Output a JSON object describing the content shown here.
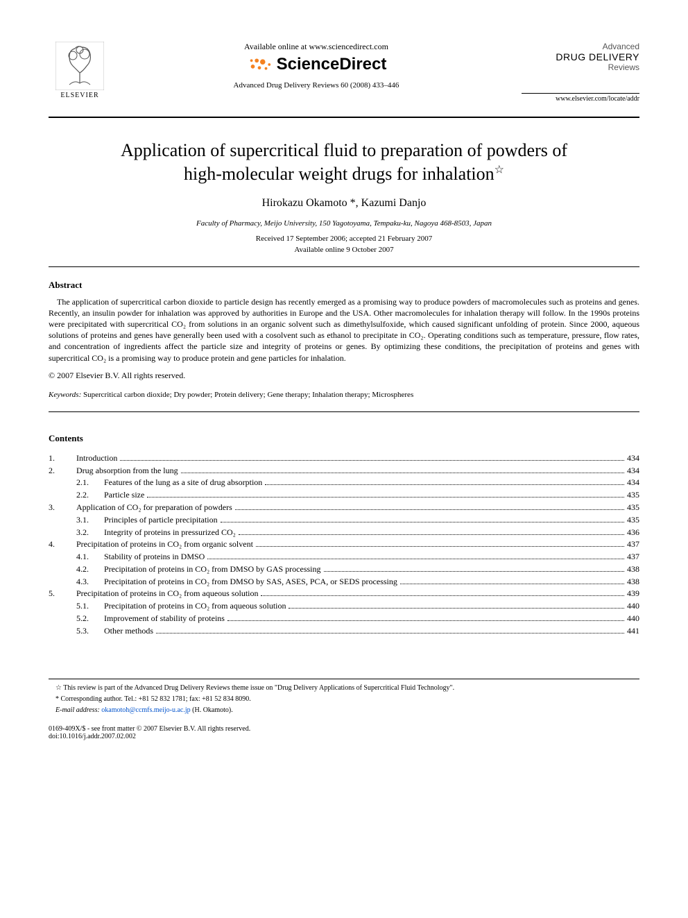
{
  "header": {
    "elsevier_label": "ELSEVIER",
    "available_online": "Available online at www.sciencedirect.com",
    "sd_brand": "ScienceDirect",
    "journal_ref": "Advanced Drug Delivery Reviews 60 (2008) 433–446",
    "journal_name_top": "Advanced",
    "journal_name_mid": "DRUG DELIVERY",
    "journal_name_bot": "Reviews",
    "locate_url": "www.elsevier.com/locate/addr"
  },
  "article": {
    "title_line1": "Application of supercritical fluid to preparation of powders of",
    "title_line2": "high-molecular weight drugs for inhalation",
    "authors": "Hirokazu Okamoto *, Kazumi Danjo",
    "affiliation": "Faculty of Pharmacy, Meijo University, 150 Yagotoyama, Tempaku-ku, Nagoya 468-8503, Japan",
    "received": "Received 17 September 2006; accepted 21 February 2007",
    "online": "Available online 9 October 2007"
  },
  "abstract": {
    "heading": "Abstract",
    "body": "The application of supercritical carbon dioxide to particle design has recently emerged as a promising way to produce powders of macromolecules such as proteins and genes. Recently, an insulin powder for inhalation was approved by authorities in Europe and the USA. Other macromolecules for inhalation therapy will follow. In the 1990s proteins were precipitated with supercritical CO₂ from solutions in an organic solvent such as dimethylsulfoxide, which caused significant unfolding of protein. Since 2000, aqueous solutions of proteins and genes have generally been used with a cosolvent such as ethanol to precipitate in CO₂. Operating conditions such as temperature, pressure, flow rates, and concentration of ingredients affect the particle size and integrity of proteins or genes. By optimizing these conditions, the precipitation of proteins and genes with supercritical CO₂ is a promising way to produce protein and gene particles for inhalation.",
    "copyright": "© 2007 Elsevier B.V. All rights reserved."
  },
  "keywords": {
    "label": "Keywords:",
    "text": " Supercritical carbon dioxide; Dry powder; Protein delivery; Gene therapy; Inhalation therapy; Microspheres"
  },
  "contents": {
    "heading": "Contents",
    "items": [
      {
        "num": "1.",
        "sub": "",
        "title": "Introduction",
        "page": "434",
        "level": 1
      },
      {
        "num": "2.",
        "sub": "",
        "title": "Drug absorption from the lung",
        "page": "434",
        "level": 1
      },
      {
        "num": "",
        "sub": "2.1.",
        "title": "Features of the lung as a site of drug absorption",
        "page": "434",
        "level": 2
      },
      {
        "num": "",
        "sub": "2.2.",
        "title": "Particle size",
        "page": "435",
        "level": 2
      },
      {
        "num": "3.",
        "sub": "",
        "title": "Application of CO₂ for preparation of powders",
        "page": "435",
        "level": 1
      },
      {
        "num": "",
        "sub": "3.1.",
        "title": "Principles of particle precipitation",
        "page": "435",
        "level": 2
      },
      {
        "num": "",
        "sub": "3.2.",
        "title": "Integrity of proteins in pressurized CO₂",
        "page": "436",
        "level": 2
      },
      {
        "num": "4.",
        "sub": "",
        "title": "Precipitation of proteins in CO₂ from organic solvent",
        "page": "437",
        "level": 1
      },
      {
        "num": "",
        "sub": "4.1.",
        "title": "Stability of proteins in DMSO",
        "page": "437",
        "level": 2
      },
      {
        "num": "",
        "sub": "4.2.",
        "title": "Precipitation of proteins in CO₂ from DMSO by GAS processing",
        "page": "438",
        "level": 2
      },
      {
        "num": "",
        "sub": "4.3.",
        "title": "Precipitation of proteins in CO₂ from DMSO by SAS, ASES, PCA, or SEDS processing",
        "page": "438",
        "level": 2
      },
      {
        "num": "5.",
        "sub": "",
        "title": "Precipitation of proteins in CO₂ from aqueous solution",
        "page": "439",
        "level": 1
      },
      {
        "num": "",
        "sub": "5.1.",
        "title": "Precipitation of proteins in CO₂ from aqueous solution",
        "page": "440",
        "level": 2
      },
      {
        "num": "",
        "sub": "5.2.",
        "title": "Improvement of stability of proteins",
        "page": "440",
        "level": 2
      },
      {
        "num": "",
        "sub": "5.3.",
        "title": "Other methods",
        "page": "441",
        "level": 2
      }
    ]
  },
  "footnotes": {
    "star": "☆ This review is part of the Advanced Drug Delivery Reviews theme issue on \"Drug Delivery Applications of Supercritical Fluid Technology\".",
    "corr": "* Corresponding author. Tel.: +81 52 832 1781; fax: +81 52 834 8090.",
    "email_label": "E-mail address:",
    "email": "okamotoh@ccmfs.meijo-u.ac.jp",
    "email_suffix": " (H. Okamoto)."
  },
  "footer": {
    "issn": "0169-409X/$ - see front matter © 2007 Elsevier B.V. All rights reserved.",
    "doi": "doi:10.1016/j.addr.2007.02.002"
  },
  "colors": {
    "text": "#000000",
    "link": "#0052cc",
    "sd_orange": "#f58220",
    "background": "#ffffff"
  }
}
